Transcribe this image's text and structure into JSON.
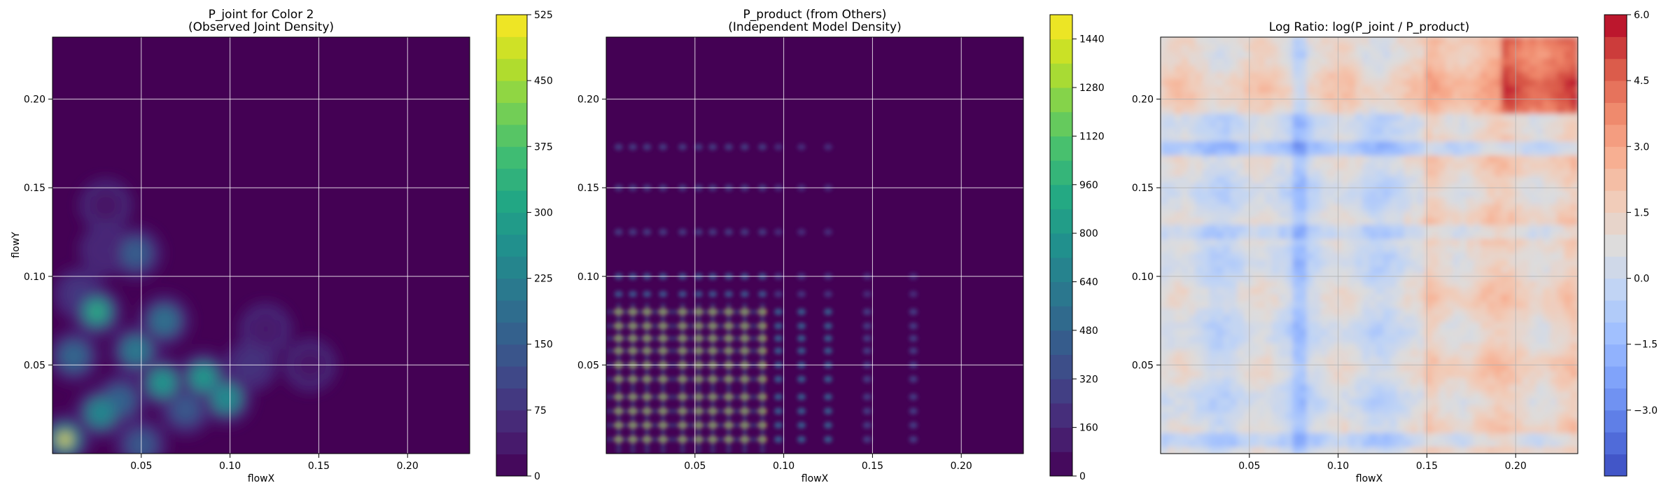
{
  "chart_data": [
    {
      "type": "heatmap",
      "title_lines": [
        "P_joint for Color 2",
        "(Observed Joint Density)"
      ],
      "xlabel": "flowX",
      "ylabel": "flowY",
      "xlim": [
        0.0,
        0.235
      ],
      "ylim": [
        0.0,
        0.235
      ],
      "xticks": [
        "0.05",
        "0.10",
        "0.15",
        "0.20"
      ],
      "yticks": [
        "0.05",
        "0.10",
        "0.15",
        "0.20"
      ],
      "grid": true,
      "colormap": "viridis",
      "colorbar": {
        "min": 0,
        "max": 525,
        "ticks": [
          "0",
          "75",
          "150",
          "225",
          "300",
          "375",
          "450",
          "525"
        ]
      },
      "hotspots": [
        {
          "x": 0.007,
          "y": 0.008,
          "v": 525
        },
        {
          "x": 0.025,
          "y": 0.08,
          "v": 360
        },
        {
          "x": 0.062,
          "y": 0.04,
          "v": 300
        },
        {
          "x": 0.085,
          "y": 0.043,
          "v": 310
        },
        {
          "x": 0.098,
          "y": 0.031,
          "v": 260
        },
        {
          "x": 0.027,
          "y": 0.023,
          "v": 250
        },
        {
          "x": 0.047,
          "y": 0.058,
          "v": 220
        },
        {
          "x": 0.063,
          "y": 0.075,
          "v": 200
        },
        {
          "x": 0.047,
          "y": 0.113,
          "v": 160
        },
        {
          "x": 0.012,
          "y": 0.055,
          "v": 180
        },
        {
          "x": 0.038,
          "y": 0.03,
          "v": 170
        },
        {
          "x": 0.075,
          "y": 0.025,
          "v": 150
        },
        {
          "x": 0.05,
          "y": 0.005,
          "v": 150
        },
        {
          "x": 0.015,
          "y": 0.09,
          "v": 90
        },
        {
          "x": 0.03,
          "y": 0.115,
          "v": 60
        },
        {
          "x": 0.112,
          "y": 0.05,
          "v": 80
        },
        {
          "x": 0.12,
          "y": 0.07,
          "v": 40
        },
        {
          "x": 0.145,
          "y": 0.05,
          "v": 30
        },
        {
          "x": 0.03,
          "y": 0.14,
          "v": 30
        }
      ]
    },
    {
      "type": "heatmap",
      "title_lines": [
        "P_product (from Others)",
        "(Independent Model Density)"
      ],
      "xlabel": "flowX",
      "ylabel": "",
      "xlim": [
        0.0,
        0.235
      ],
      "ylim": [
        0.0,
        0.235
      ],
      "xticks": [
        "0.05",
        "0.10",
        "0.15",
        "0.20"
      ],
      "yticks": [
        "0.05",
        "0.10",
        "0.15",
        "0.20"
      ],
      "grid": true,
      "colormap": "viridis",
      "colorbar": {
        "min": 0,
        "max": 1520,
        "ticks": [
          "0",
          "160",
          "320",
          "480",
          "640",
          "800",
          "960",
          "1120",
          "1280",
          "1440"
        ]
      },
      "x_peaks": [
        0.007,
        0.015,
        0.023,
        0.032,
        0.043,
        0.052,
        0.06,
        0.069,
        0.078,
        0.088,
        0.097,
        0.11,
        0.125,
        0.147,
        0.173
      ],
      "y_peaks": [
        0.008,
        0.016,
        0.024,
        0.032,
        0.042,
        0.05,
        0.058,
        0.065,
        0.072,
        0.08,
        0.09,
        0.1,
        0.125,
        0.15,
        0.173
      ],
      "peak_value": 1440
    },
    {
      "type": "heatmap",
      "title_lines": [
        "Log Ratio: log(P_joint / P_product)"
      ],
      "xlabel": "flowX",
      "ylabel": "",
      "xlim": [
        0.0,
        0.235
      ],
      "ylim": [
        0.0,
        0.235
      ],
      "xticks": [
        "0.05",
        "0.10",
        "0.15",
        "0.20"
      ],
      "yticks": [
        "0.05",
        "0.10",
        "0.15",
        "0.20"
      ],
      "grid": true,
      "colormap": "coolwarm",
      "colorbar": {
        "min": -4.5,
        "max": 6.0,
        "ticks": [
          "6.0",
          "4.5",
          "3.0",
          "1.5",
          "0.0",
          "−1.5",
          "−3.0"
        ]
      }
    }
  ]
}
